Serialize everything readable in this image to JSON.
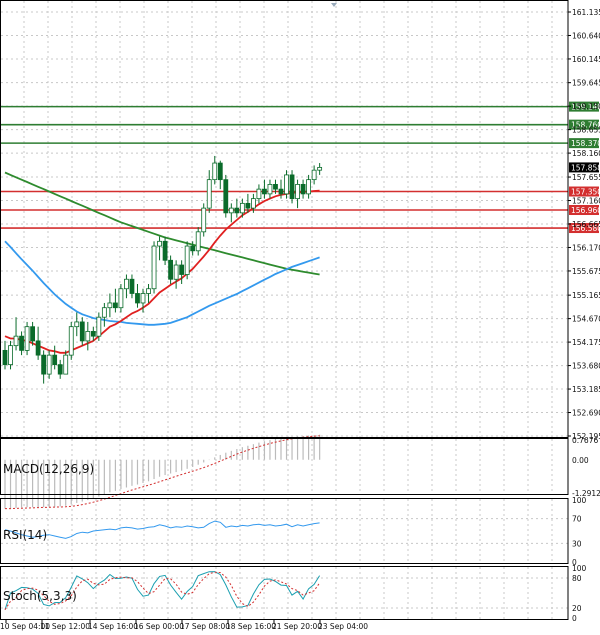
{
  "chart_data": {
    "type": "candlestick",
    "price_axis": {
      "ticks": [
        "161.135",
        "160.640",
        "160.145",
        "159.645",
        "159.150",
        "158.655",
        "158.160",
        "157.655",
        "157.160",
        "156.665",
        "156.170",
        "155.675",
        "155.165",
        "154.670",
        "154.175",
        "153.680",
        "153.185",
        "152.690",
        "152.195"
      ],
      "ylim": [
        152.195,
        161.135
      ]
    },
    "level_lines": [
      {
        "value": 159.14,
        "label": "159.140",
        "color": "#2e7d32"
      },
      {
        "value": 158.76,
        "label": "158.760",
        "color": "#2e7d32"
      },
      {
        "value": 158.37,
        "label": "158.370",
        "color": "#2e7d32"
      },
      {
        "value": 157.35,
        "label": "157.350",
        "color": "#d32f2f"
      },
      {
        "value": 156.96,
        "label": "156.960",
        "color": "#d32f2f"
      },
      {
        "value": 156.58,
        "label": "156.580",
        "color": "#d32f2f"
      }
    ],
    "current_price": {
      "value": 157.858,
      "label": "157.858"
    },
    "x_ticks": [
      "10 Sep 04:00",
      "11 Sep 12:00",
      "14 Sep 16:00",
      "16 Sep 00:00",
      "17 Sep 08:00",
      "18 Sep 16:00",
      "21 Sep 20:00",
      "23 Sep 04:00"
    ],
    "candles": [
      [
        154.0,
        154.2,
        153.6,
        153.7
      ],
      [
        153.7,
        154.2,
        153.6,
        154.1
      ],
      [
        154.1,
        154.7,
        154.0,
        154.3
      ],
      [
        154.3,
        154.4,
        153.9,
        154.0
      ],
      [
        154.0,
        154.6,
        153.9,
        154.5
      ],
      [
        154.5,
        154.6,
        154.1,
        154.2
      ],
      [
        154.2,
        154.5,
        153.8,
        153.9
      ],
      [
        153.9,
        154.0,
        153.3,
        153.5
      ],
      [
        153.5,
        154.0,
        153.4,
        153.9
      ],
      [
        153.9,
        154.1,
        153.6,
        153.7
      ],
      [
        153.7,
        153.8,
        153.4,
        153.5
      ],
      [
        153.5,
        154.0,
        153.5,
        153.9
      ],
      [
        153.9,
        154.6,
        153.8,
        154.5
      ],
      [
        154.5,
        154.8,
        154.3,
        154.6
      ],
      [
        154.6,
        154.7,
        154.1,
        154.2
      ],
      [
        154.2,
        154.6,
        154.0,
        154.4
      ],
      [
        154.4,
        154.5,
        154.2,
        154.3
      ],
      [
        154.3,
        154.8,
        154.2,
        154.7
      ],
      [
        154.7,
        155.0,
        154.5,
        154.9
      ],
      [
        154.9,
        155.2,
        154.7,
        155.0
      ],
      [
        155.0,
        155.3,
        154.8,
        154.9
      ],
      [
        154.9,
        155.4,
        154.8,
        155.3
      ],
      [
        155.3,
        155.6,
        155.1,
        155.5
      ],
      [
        155.5,
        155.6,
        155.1,
        155.2
      ],
      [
        155.2,
        155.4,
        154.9,
        155.0
      ],
      [
        155.0,
        155.3,
        154.8,
        155.2
      ],
      [
        155.2,
        155.4,
        155.0,
        155.3
      ],
      [
        155.3,
        156.3,
        155.2,
        156.2
      ],
      [
        156.2,
        156.4,
        155.9,
        156.3
      ],
      [
        156.3,
        156.4,
        155.8,
        155.9
      ],
      [
        155.9,
        156.0,
        155.4,
        155.5
      ],
      [
        155.5,
        155.9,
        155.3,
        155.8
      ],
      [
        155.8,
        155.9,
        155.4,
        155.6
      ],
      [
        155.6,
        156.3,
        155.5,
        156.2
      ],
      [
        156.2,
        156.3,
        156.0,
        156.1
      ],
      [
        156.1,
        156.6,
        156.0,
        156.5
      ],
      [
        156.5,
        157.1,
        156.4,
        157.0
      ],
      [
        157.0,
        157.8,
        156.9,
        157.6
      ],
      [
        157.6,
        158.1,
        157.5,
        157.95
      ],
      [
        157.95,
        158.0,
        157.4,
        157.6
      ],
      [
        157.6,
        157.7,
        156.8,
        156.9
      ],
      [
        156.9,
        157.1,
        156.7,
        157.0
      ],
      [
        157.0,
        157.2,
        156.8,
        156.9
      ],
      [
        156.9,
        157.2,
        156.8,
        157.1
      ],
      [
        157.1,
        157.3,
        156.9,
        157.0
      ],
      [
        157.0,
        157.3,
        156.9,
        157.2
      ],
      [
        157.2,
        157.5,
        157.1,
        157.4
      ],
      [
        157.4,
        157.6,
        157.2,
        157.3
      ],
      [
        157.3,
        157.6,
        157.2,
        157.5
      ],
      [
        157.5,
        157.6,
        157.3,
        157.4
      ],
      [
        157.4,
        157.6,
        157.2,
        157.3
      ],
      [
        157.3,
        157.8,
        157.2,
        157.7
      ],
      [
        157.7,
        157.8,
        157.1,
        157.2
      ],
      [
        157.2,
        157.6,
        157.0,
        157.5
      ],
      [
        157.5,
        157.6,
        157.2,
        157.3
      ],
      [
        157.3,
        157.7,
        157.2,
        157.6
      ],
      [
        157.6,
        157.9,
        157.5,
        157.8
      ],
      [
        157.8,
        157.95,
        157.7,
        157.858
      ]
    ],
    "ma_red": [
      154.3,
      154.25,
      154.25,
      154.22,
      154.2,
      154.15,
      154.1,
      154.05,
      154.0,
      153.98,
      153.95,
      153.95,
      154.0,
      154.05,
      154.1,
      154.15,
      154.2,
      154.3,
      154.4,
      154.5,
      154.55,
      154.62,
      154.7,
      154.78,
      154.83,
      154.9,
      154.98,
      155.1,
      155.22,
      155.3,
      155.38,
      155.45,
      155.52,
      155.62,
      155.72,
      155.85,
      155.98,
      156.12,
      156.28,
      156.42,
      156.55,
      156.65,
      156.75,
      156.85,
      156.92,
      157.0,
      157.08,
      157.15,
      157.2,
      157.25,
      157.28,
      157.3,
      157.32,
      157.33,
      157.34,
      157.35,
      157.36,
      157.37
    ],
    "ma_blue": [
      156.3,
      156.18,
      156.05,
      155.92,
      155.8,
      155.68,
      155.55,
      155.42,
      155.3,
      155.18,
      155.08,
      154.98,
      154.9,
      154.82,
      154.76,
      154.72,
      154.68,
      154.66,
      154.64,
      154.62,
      154.61,
      154.6,
      154.58,
      154.57,
      154.56,
      154.55,
      154.54,
      154.54,
      154.55,
      154.56,
      154.58,
      154.62,
      154.66,
      154.7,
      154.76,
      154.82,
      154.88,
      154.94,
      154.99,
      155.04,
      155.09,
      155.14,
      155.19,
      155.25,
      155.31,
      155.37,
      155.43,
      155.49,
      155.55,
      155.61,
      155.66,
      155.71,
      155.76,
      155.8,
      155.84,
      155.88,
      155.92,
      155.96
    ],
    "ma_green": [
      157.75,
      157.7,
      157.65,
      157.6,
      157.55,
      157.5,
      157.45,
      157.4,
      157.35,
      157.3,
      157.25,
      157.2,
      157.15,
      157.1,
      157.05,
      157.0,
      156.95,
      156.9,
      156.85,
      156.8,
      156.75,
      156.7,
      156.66,
      156.62,
      156.58,
      156.54,
      156.5,
      156.46,
      156.42,
      156.38,
      156.35,
      156.32,
      156.29,
      156.26,
      156.23,
      156.2,
      156.17,
      156.14,
      156.11,
      156.08,
      156.05,
      156.02,
      155.99,
      155.96,
      155.93,
      155.9,
      155.87,
      155.84,
      155.81,
      155.78,
      155.75,
      155.72,
      155.7,
      155.68,
      155.66,
      155.64,
      155.62,
      155.6
    ],
    "macd": {
      "label": "MACD(12,26,9)",
      "ticks": [
        "0.7676",
        "0.00",
        "-1.2912"
      ],
      "range": [
        -1.2912,
        0.7676
      ]
    },
    "rsi": {
      "label": "RSI(14)",
      "ticks": [
        "100",
        "70",
        "30",
        "0"
      ],
      "values": [
        52,
        50,
        47,
        44,
        42,
        40,
        41,
        43,
        44,
        42,
        40,
        38,
        41,
        46,
        48,
        47,
        50,
        51,
        52,
        53,
        52,
        55,
        56,
        55,
        53,
        54,
        56,
        57,
        60,
        58,
        55,
        57,
        56,
        58,
        57,
        55,
        56,
        62,
        66,
        64,
        56,
        58,
        57,
        59,
        58,
        60,
        61,
        59,
        60,
        58,
        59,
        61,
        57,
        60,
        58,
        60,
        62,
        63
      ]
    },
    "stoch": {
      "label": "Stoch(5,3,3)",
      "ticks": [
        "100",
        "80",
        "20",
        "0"
      ]
    }
  }
}
